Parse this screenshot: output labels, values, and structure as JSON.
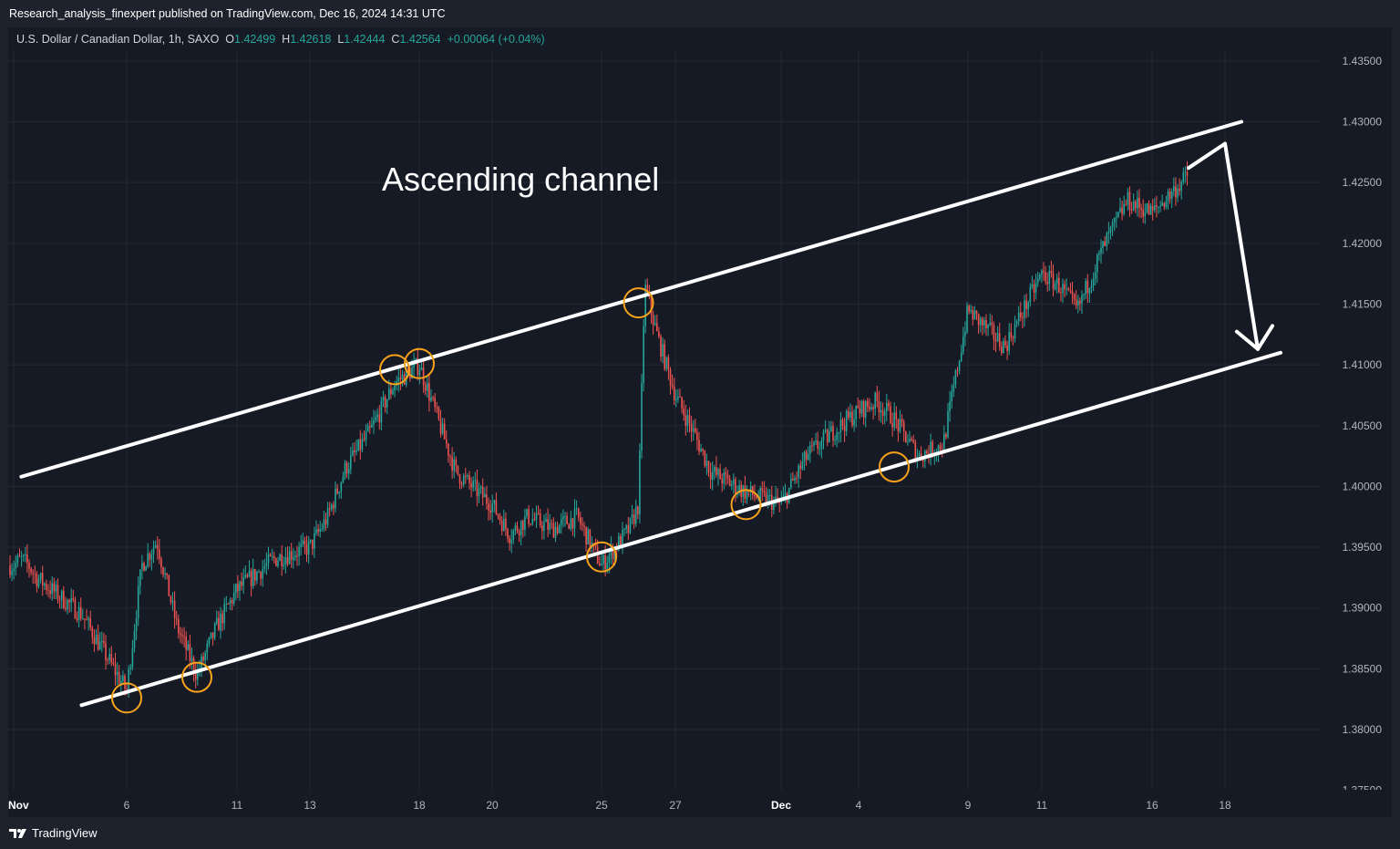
{
  "header": {
    "publisher_line": "Research_analysis_finexpert published on TradingView.com, Dec 16, 2024 14:31 UTC"
  },
  "legend": {
    "symbol": "U.S. Dollar / Canadian Dollar, 1h, SAXO",
    "open_label": "O",
    "open": "1.42499",
    "high_label": "H",
    "high": "1.42618",
    "low_label": "L",
    "low": "1.42444",
    "close_label": "C",
    "close": "1.42564",
    "change": "+0.00064 (+0.04%)"
  },
  "annotation": {
    "text": "Ascending channel"
  },
  "footer": {
    "brand": "TradingView"
  },
  "colors": {
    "up": "#26a69a",
    "down": "#ef5350",
    "annotation": "#ffffff",
    "marker": "#f7a21b",
    "background": "#161a25"
  },
  "chart_data": {
    "type": "candlestick",
    "title": "U.S. Dollar / Canadian Dollar, 1h, SAXO",
    "x_tick_labels": [
      "Nov",
      "6",
      "11",
      "13",
      "18",
      "20",
      "25",
      "27",
      "Dec",
      "4",
      "9",
      "11",
      "16",
      "18"
    ],
    "x_ticks": [
      "2024-11-01",
      "2024-11-06",
      "2024-11-11",
      "2024-11-13",
      "2024-11-18",
      "2024-11-20",
      "2024-11-25",
      "2024-11-27",
      "2024-12-01",
      "2024-12-04",
      "2024-12-09",
      "2024-12-11",
      "2024-12-16",
      "2024-12-18"
    ],
    "y_tick_labels": [
      "1.43500",
      "1.43000",
      "1.42500",
      "1.42000",
      "1.41500",
      "1.41000",
      "1.40500",
      "1.40000",
      "1.39500",
      "1.39000",
      "1.38500",
      "1.38000",
      "1.37500"
    ],
    "y_ticks": [
      1.435,
      1.43,
      1.425,
      1.42,
      1.415,
      1.41,
      1.405,
      1.4,
      1.395,
      1.39,
      1.385,
      1.38,
      1.375
    ],
    "ylim": [
      1.375,
      1.4375
    ],
    "grid": true,
    "price_path": [
      [
        "2024-11-01",
        1.3935
      ],
      [
        "2024-11-02",
        1.394
      ],
      [
        "2024-11-03",
        1.3935
      ],
      [
        "2024-11-04",
        1.3925
      ],
      [
        "2024-11-05",
        1.3895
      ],
      [
        "2024-11-06",
        1.3832
      ],
      [
        "2024-11-06T12:00",
        1.3935
      ],
      [
        "2024-11-07",
        1.3955
      ],
      [
        "2024-11-08",
        1.3885
      ],
      [
        "2024-11-09",
        1.3845
      ],
      [
        "2024-11-10",
        1.3885
      ],
      [
        "2024-11-11",
        1.3915
      ],
      [
        "2024-11-12",
        1.394
      ],
      [
        "2024-11-13",
        1.395
      ],
      [
        "2024-11-14",
        1.3975
      ],
      [
        "2024-11-15",
        1.4015
      ],
      [
        "2024-11-16",
        1.4045
      ],
      [
        "2024-11-17",
        1.4085
      ],
      [
        "2024-11-18",
        1.41
      ],
      [
        "2024-11-19",
        1.4012
      ],
      [
        "2024-11-20",
        1.3985
      ],
      [
        "2024-11-21",
        1.396
      ],
      [
        "2024-11-22",
        1.3975
      ],
      [
        "2024-11-23",
        1.3965
      ],
      [
        "2024-11-24",
        1.3975
      ],
      [
        "2024-11-25",
        1.3935
      ],
      [
        "2024-11-25T18:00",
        1.3965
      ],
      [
        "2024-11-26",
        1.3985
      ],
      [
        "2024-11-26T04:00",
        1.4165
      ],
      [
        "2024-11-26T12:00",
        1.4125
      ],
      [
        "2024-11-27",
        1.4075
      ],
      [
        "2024-11-28",
        1.4045
      ],
      [
        "2024-11-29",
        1.4012
      ],
      [
        "2024-11-30",
        1.3995
      ],
      [
        "2024-12-01",
        1.3985
      ],
      [
        "2024-12-02",
        1.4025
      ],
      [
        "2024-12-03",
        1.4045
      ],
      [
        "2024-12-04",
        1.4062
      ],
      [
        "2024-12-05",
        1.407
      ],
      [
        "2024-12-06",
        1.4055
      ],
      [
        "2024-12-07",
        1.4025
      ],
      [
        "2024-12-08",
        1.4035
      ],
      [
        "2024-12-09",
        1.4145
      ],
      [
        "2024-12-10",
        1.4115
      ],
      [
        "2024-12-11",
        1.4175
      ],
      [
        "2024-12-12",
        1.4165
      ],
      [
        "2024-12-13",
        1.4145
      ],
      [
        "2024-12-14",
        1.4195
      ],
      [
        "2024-12-15",
        1.4235
      ],
      [
        "2024-12-16",
        1.4225
      ],
      [
        "2024-12-17",
        1.4256
      ]
    ],
    "annotations": {
      "channel_upper": [
        [
          "2024-11-02",
          1.4008
        ],
        [
          "2024-12-19",
          1.43
        ]
      ],
      "channel_lower": [
        [
          "2024-11-05",
          1.382
        ],
        [
          "2024-12-21",
          1.411
        ]
      ],
      "arrow": [
        [
          "2024-12-17",
          1.4262
        ],
        [
          "2024-12-18",
          1.4282
        ],
        [
          "2024-12-20",
          1.4113
        ]
      ],
      "touch_points": [
        [
          "2024-11-06",
          1.3826
        ],
        [
          "2024-11-09",
          1.3843
        ],
        [
          "2024-11-17",
          1.4096
        ],
        [
          "2024-11-18",
          1.4101
        ],
        [
          "2024-11-25",
          1.3942
        ],
        [
          "2024-11-26",
          1.4151
        ],
        [
          "2024-11-30",
          1.3985
        ],
        [
          "2024-12-06",
          1.4016
        ]
      ]
    }
  }
}
